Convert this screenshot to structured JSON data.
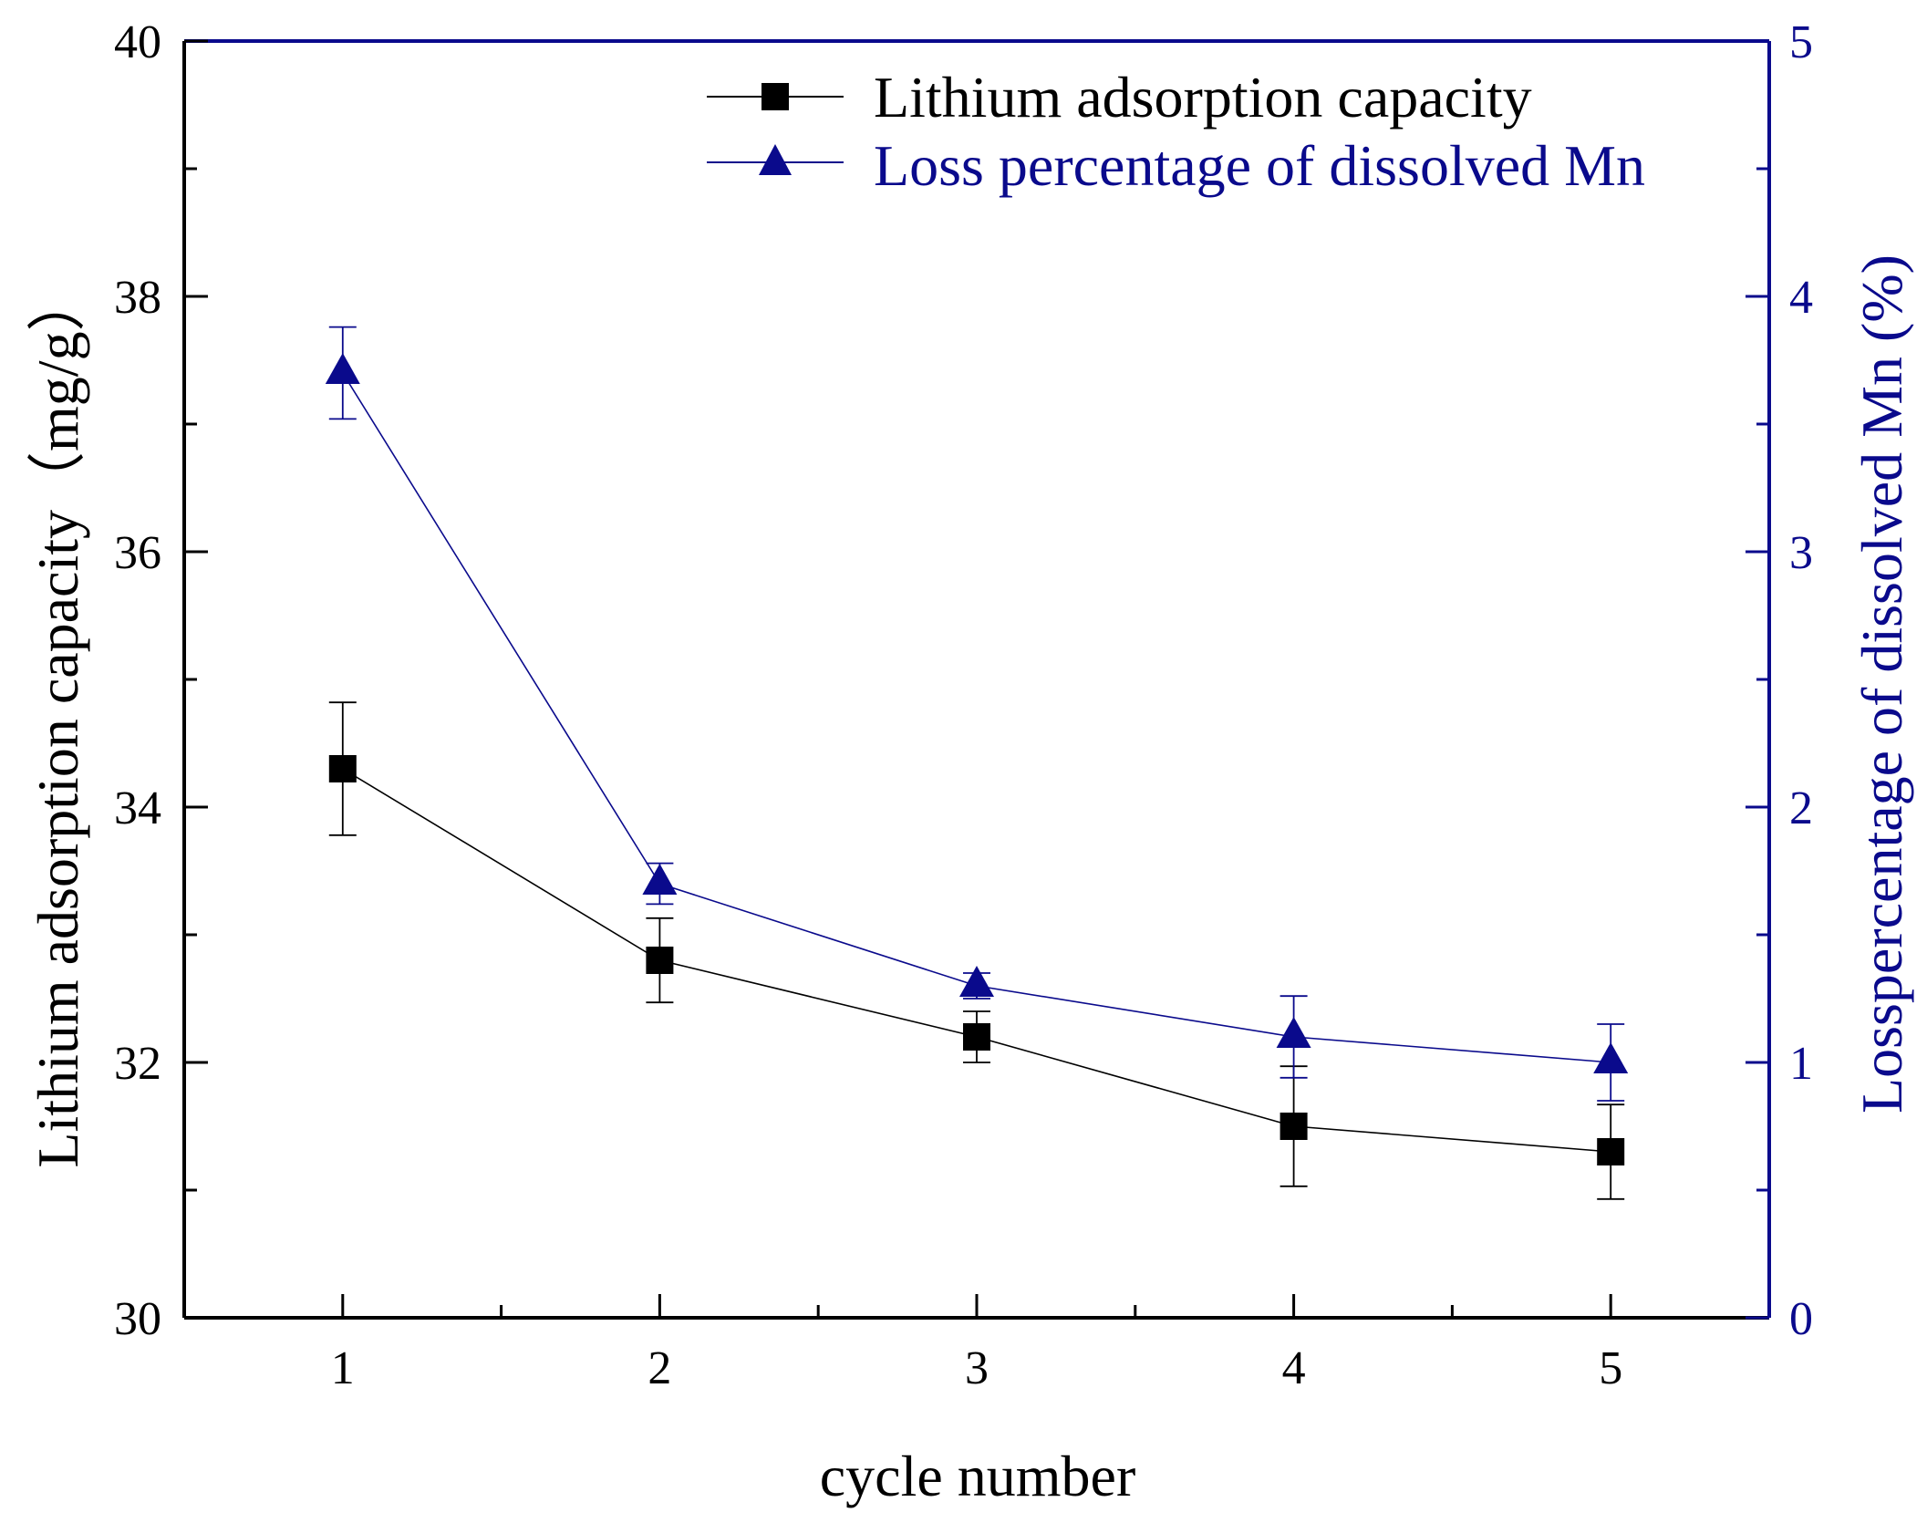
{
  "colors": {
    "series1": "#000000",
    "series2": "#0a0a8c",
    "axis_left": "#000000",
    "axis_right": "#0a0a8c",
    "background": "#ffffff"
  },
  "chart_data": {
    "type": "line",
    "title": "",
    "x": [
      1,
      2,
      3,
      4,
      5
    ],
    "xlabel": "cycle number",
    "xlim": [
      0.5,
      5.5
    ],
    "x_ticks": [
      "1",
      "2",
      "3",
      "4",
      "5"
    ],
    "ylabel": "Lithium adsorption capacity（mg/g）",
    "ylim": [
      30,
      40
    ],
    "y_ticks": [
      "30",
      "32",
      "34",
      "36",
      "38",
      "40"
    ],
    "y2label": "Losspercentage of dissolved Mn (%)",
    "y2lim": [
      0,
      5
    ],
    "y2_ticks": [
      "0",
      "1",
      "2",
      "3",
      "4",
      "5"
    ],
    "grid": false,
    "legend_position": "top-right",
    "series": [
      {
        "name": "Lithium adsorption capacity",
        "axis": "left",
        "marker": "square",
        "values": [
          34.3,
          32.8,
          32.2,
          31.5,
          31.3
        ],
        "error": [
          0.52,
          0.33,
          0.2,
          0.47,
          0.37
        ]
      },
      {
        "name": "Loss percentage of dissolved Mn",
        "axis": "right",
        "marker": "triangle",
        "values": [
          3.7,
          1.7,
          1.3,
          1.1,
          1.0
        ],
        "error": [
          0.18,
          0.08,
          0.05,
          0.16,
          0.15
        ]
      }
    ]
  }
}
